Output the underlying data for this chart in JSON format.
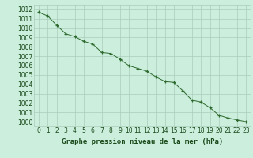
{
  "x": [
    0,
    1,
    2,
    3,
    4,
    5,
    6,
    7,
    8,
    9,
    10,
    11,
    12,
    13,
    14,
    15,
    16,
    17,
    18,
    19,
    20,
    21,
    22,
    23
  ],
  "y": [
    1011.7,
    1011.3,
    1010.3,
    1009.4,
    1009.1,
    1008.6,
    1008.3,
    1007.4,
    1007.3,
    1006.7,
    1006.0,
    1005.7,
    1005.4,
    1004.8,
    1004.3,
    1004.2,
    1003.3,
    1002.3,
    1002.1,
    1001.5,
    1000.7,
    1000.4,
    1000.2,
    1000.0
  ],
  "line_color": "#2d6a2d",
  "marker": "+",
  "bg_color": "#cceedd",
  "grid_color": "#aaccbb",
  "xlabel": "Graphe pression niveau de la mer (hPa)",
  "xlabel_color": "#1a4a1a",
  "tick_color": "#1a4a1a",
  "ylim_min": 999.5,
  "ylim_max": 1012.5,
  "xlim_min": -0.5,
  "xlim_max": 23.5,
  "yticks": [
    1000,
    1001,
    1002,
    1003,
    1004,
    1005,
    1006,
    1007,
    1008,
    1009,
    1010,
    1011,
    1012
  ],
  "xticks": [
    0,
    1,
    2,
    3,
    4,
    5,
    6,
    7,
    8,
    9,
    10,
    11,
    12,
    13,
    14,
    15,
    16,
    17,
    18,
    19,
    20,
    21,
    22,
    23
  ],
  "tick_fontsize": 5.5,
  "xlabel_fontsize": 6.5
}
